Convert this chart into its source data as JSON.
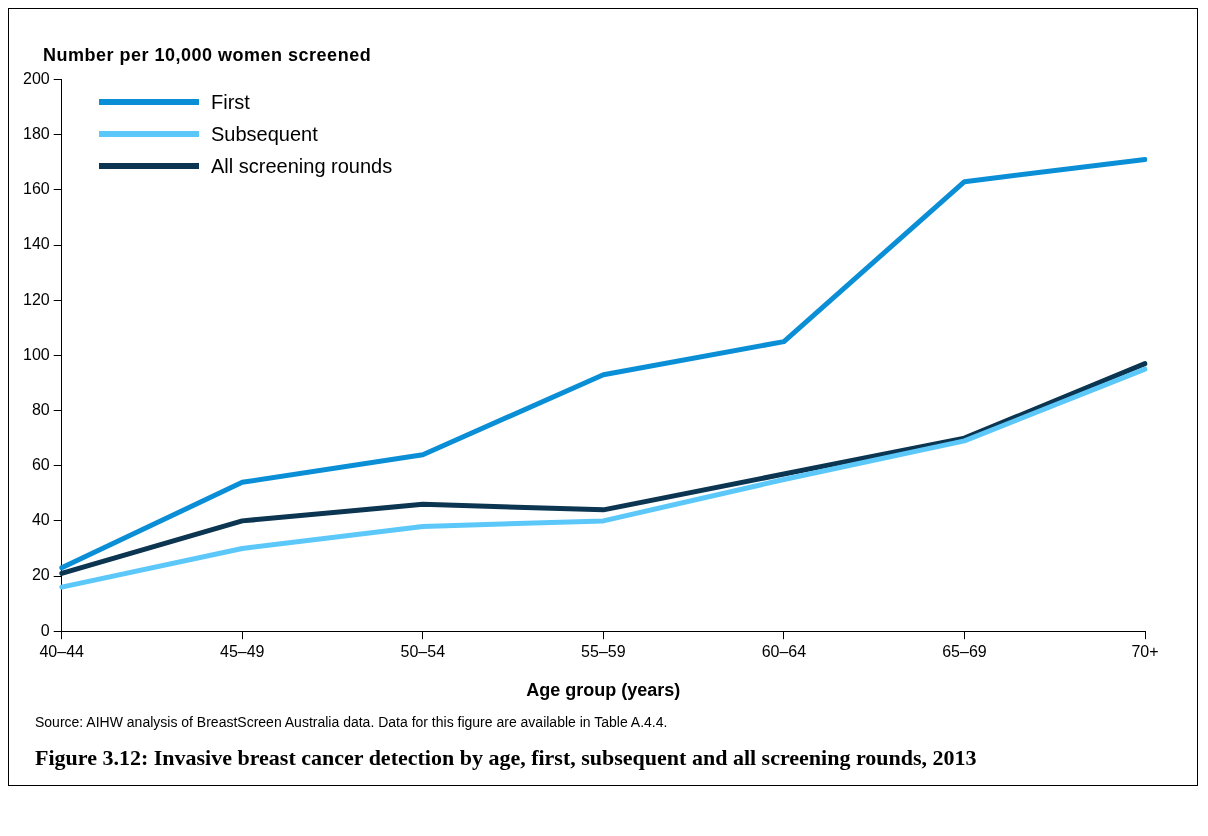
{
  "chart_data": {
    "type": "line",
    "ylabel": "Number per 10,000 women screened",
    "xlabel": "Age group (years)",
    "title": "Figure 3.12: Invasive breast cancer detection by age, first, subsequent and all screening rounds, 2013",
    "annotations": [
      "Source: AIHW analysis of BreastScreen Australia data. Data for this figure are available in Table A.4.4."
    ],
    "categories": [
      "40–44",
      "45–49",
      "50–54",
      "55–59",
      "60–64",
      "65–69",
      "70+"
    ],
    "series": [
      {
        "name": "First",
        "color": "#0a8fd6",
        "values": [
          23,
          54,
          64,
          93,
          105,
          163,
          171
        ]
      },
      {
        "name": "Subsequent",
        "color": "#5cc8fa",
        "values": [
          16,
          30,
          38,
          40,
          55,
          69,
          95
        ]
      },
      {
        "name": "All screening rounds",
        "color": "#0b3550",
        "values": [
          21,
          40,
          46,
          44,
          57,
          70,
          97
        ]
      }
    ],
    "ylim": [
      0,
      200
    ],
    "yticks": [
      0,
      20,
      40,
      60,
      80,
      100,
      120,
      140,
      160,
      180,
      200
    ],
    "grid": false,
    "legend": "top left",
    "marker": "none",
    "line_style": "solid"
  }
}
